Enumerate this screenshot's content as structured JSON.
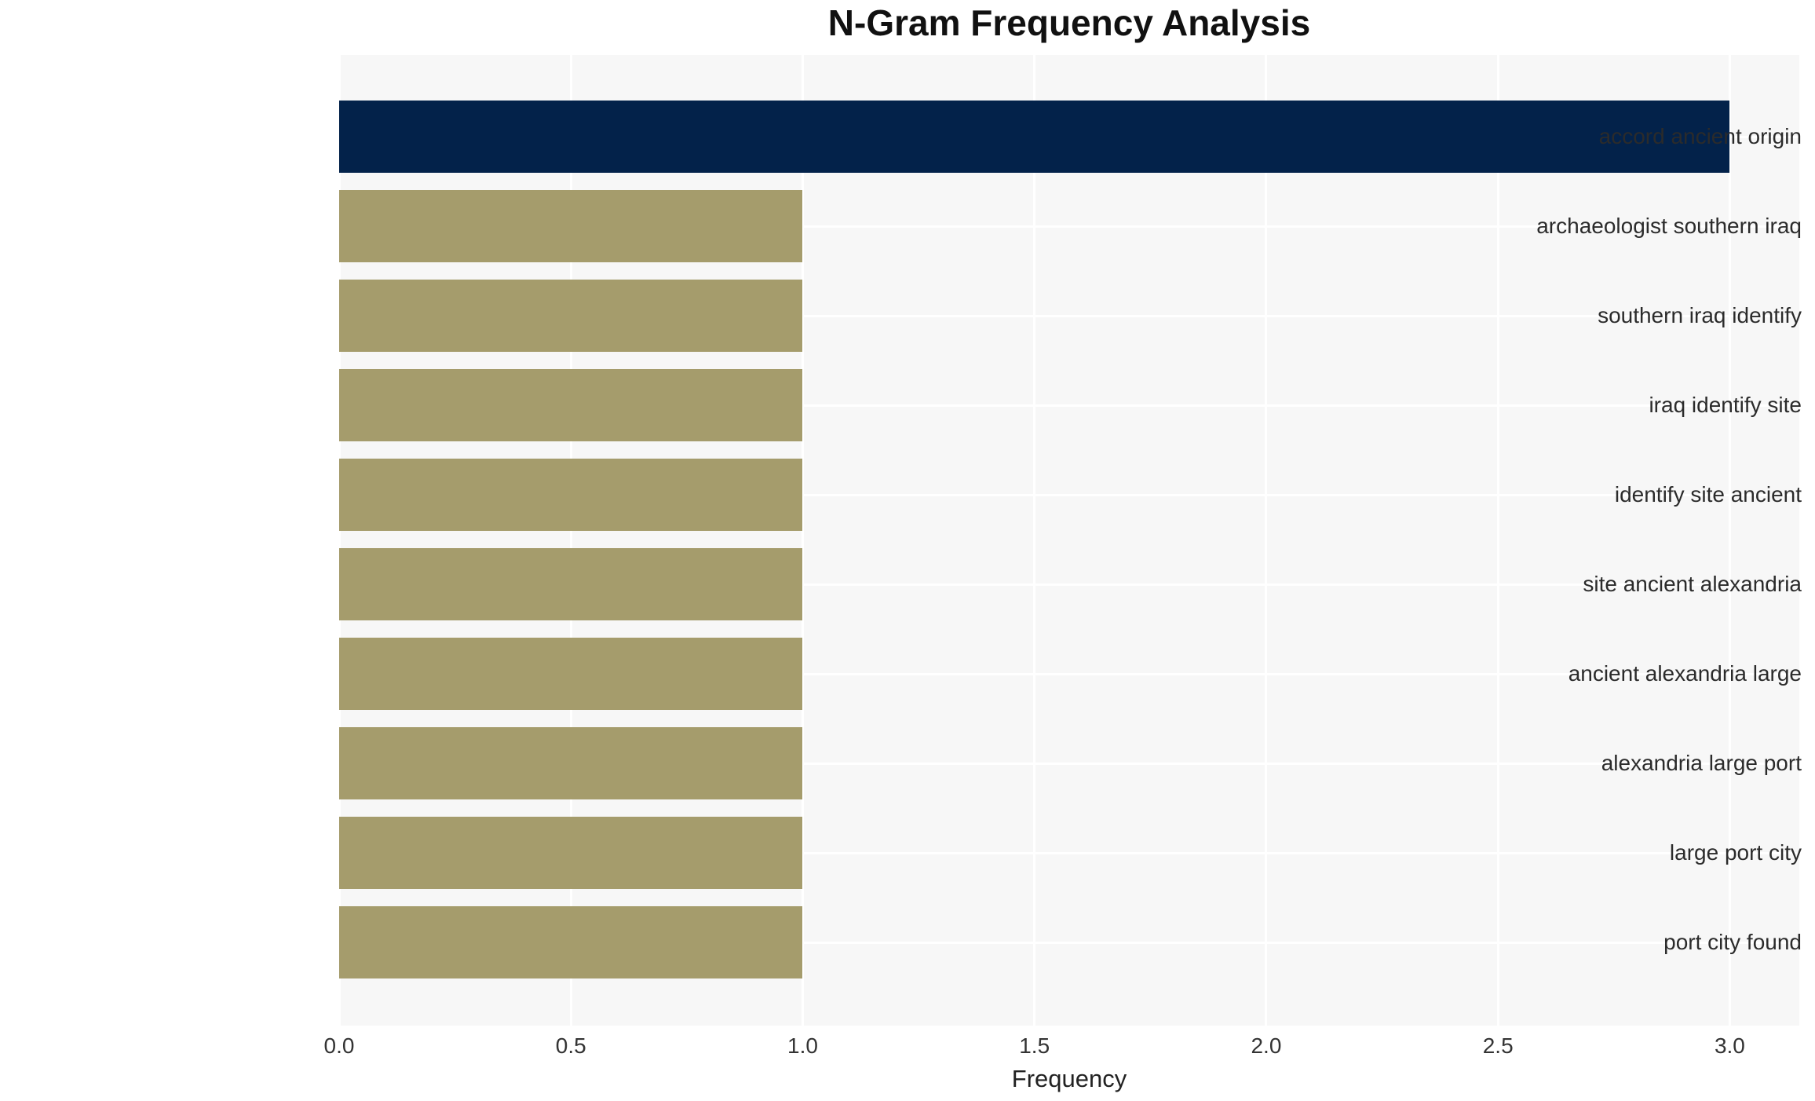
{
  "chart_data": {
    "type": "bar",
    "orientation": "horizontal",
    "title": "N-Gram Frequency Analysis",
    "xlabel": "Frequency",
    "ylabel": "",
    "categories": [
      "accord ancient origin",
      "archaeologist southern iraq",
      "southern iraq identify",
      "iraq identify site",
      "identify site ancient",
      "site ancient alexandria",
      "ancient alexandria large",
      "alexandria large port",
      "large port city",
      "port city found"
    ],
    "values": [
      3,
      1,
      1,
      1,
      1,
      1,
      1,
      1,
      1,
      1
    ],
    "bar_colors": [
      "#03224a",
      "#a59c6c",
      "#a59c6c",
      "#a59c6c",
      "#a59c6c",
      "#a59c6c",
      "#a59c6c",
      "#a59c6c",
      "#a59c6c",
      "#a59c6c"
    ],
    "xlim": [
      0,
      3.15
    ],
    "xticks": [
      0.0,
      0.5,
      1.0,
      1.5,
      2.0,
      2.5,
      3.0
    ],
    "xtick_labels": [
      "0.0",
      "0.5",
      "1.0",
      "1.5",
      "2.0",
      "2.5",
      "3.0"
    ],
    "grid": true,
    "legend_position": "none",
    "colors": {
      "highlight_bar": "#03224a",
      "default_bar": "#a59c6c",
      "plot_background": "#f7f7f7",
      "gridline": "#ffffff",
      "title_text": "#111111",
      "label_text": "#2b2b2b"
    }
  }
}
